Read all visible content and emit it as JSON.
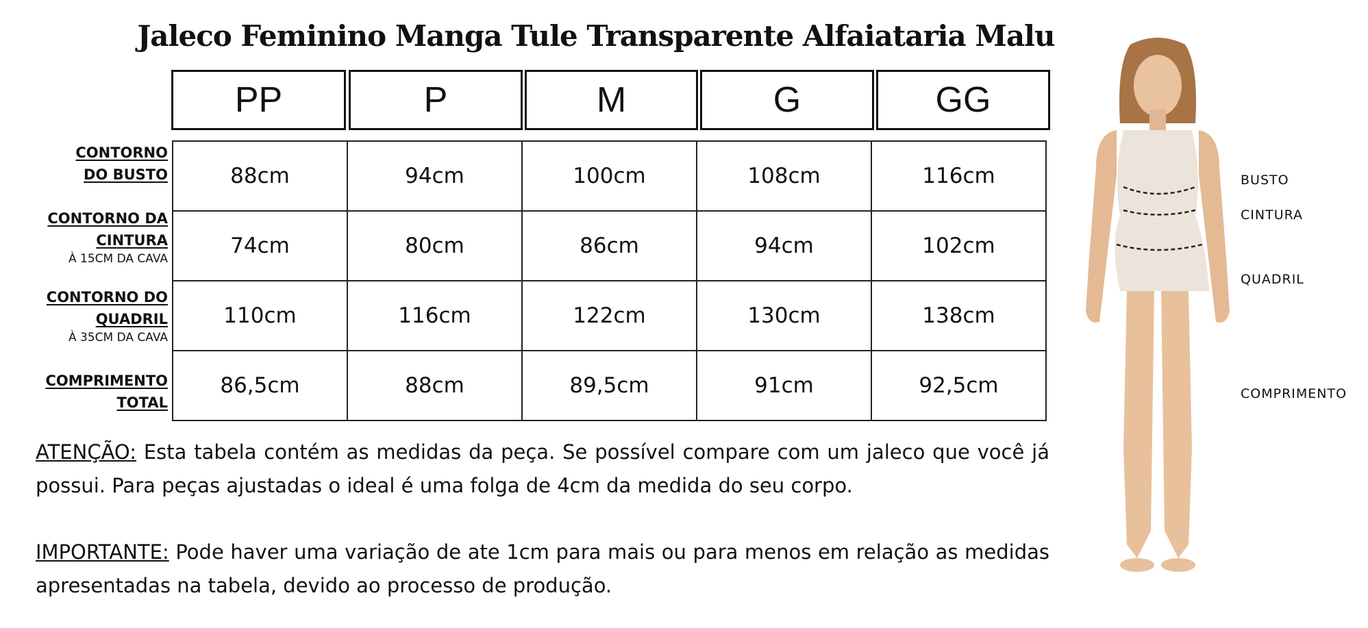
{
  "title": "Jaleco Feminino Manga Tule Transparente Alfaiataria Malu",
  "sizes": [
    "PP",
    "P",
    "M",
    "G",
    "GG"
  ],
  "rows": [
    {
      "label": "CONTORNO DO BUSTO",
      "note": "",
      "values": [
        "88cm",
        "94cm",
        "100cm",
        "108cm",
        "116cm"
      ]
    },
    {
      "label": "CONTORNO DA CINTURA",
      "note": "À 15CM DA CAVA",
      "values": [
        "74cm",
        "80cm",
        "86cm",
        "94cm",
        "102cm"
      ]
    },
    {
      "label": "CONTORNO DO QUADRIL",
      "note": "À 35CM DA CAVA",
      "values": [
        "110cm",
        "116cm",
        "122cm",
        "130cm",
        "138cm"
      ]
    },
    {
      "label": "COMPRIMENTO TOTAL",
      "note": "",
      "values": [
        "86,5cm",
        "88cm",
        "89,5cm",
        "91cm",
        "92,5cm"
      ]
    }
  ],
  "notes": {
    "attention_label": "ATENÇÃO:",
    "attention_text": " Esta tabela contém as medidas da peça. Se possível compare com um jaleco que você já possui. Para peças ajustadas o ideal é uma folga de 4cm da medida do seu corpo.",
    "important_label": "IMPORTANTE:",
    "important_text": " Pode haver uma variação de ate 1cm para mais ou para menos em relação as medidas apresentadas na tabela, devido ao processo de produção."
  },
  "figure_labels": {
    "bust": "BUSTO",
    "waist": "CINTURA",
    "hip": "QUADRIL",
    "length": "COMPRIMENTO"
  }
}
